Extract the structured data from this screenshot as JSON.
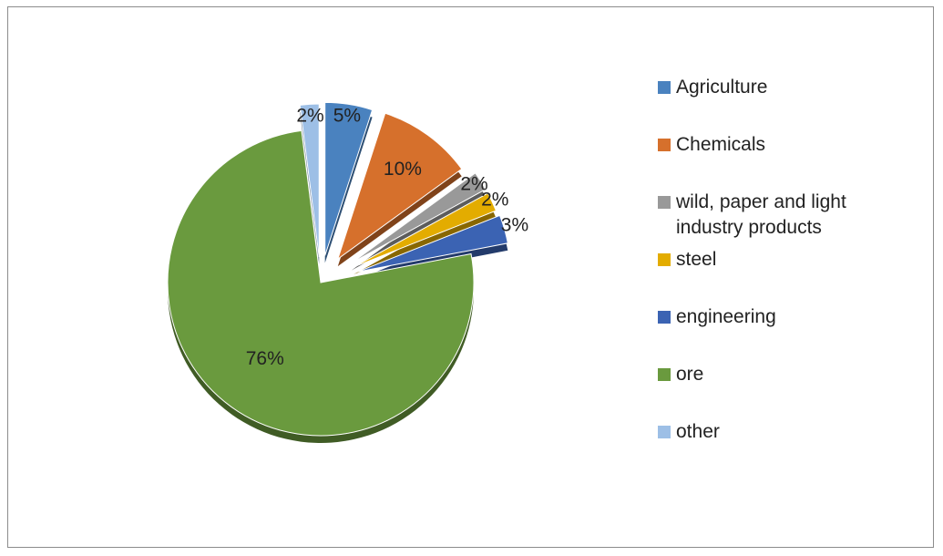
{
  "chart_data": {
    "type": "pie",
    "style": "3d-exploded",
    "categories": [
      "Agriculture",
      "Chemicals",
      "wild, paper and light industry products",
      "steel",
      "engineering",
      "ore",
      "other"
    ],
    "values": [
      5,
      10,
      2,
      2,
      3,
      76,
      2
    ],
    "labels": [
      "5%",
      "10%",
      "2%",
      "2%",
      "3%",
      "76%",
      "2%"
    ],
    "colors": [
      "#4a82bf",
      "#d6702c",
      "#999999",
      "#e3ac00",
      "#3b63b3",
      "#6a9a3e",
      "#9dbfe6"
    ],
    "legend_position": "right"
  }
}
